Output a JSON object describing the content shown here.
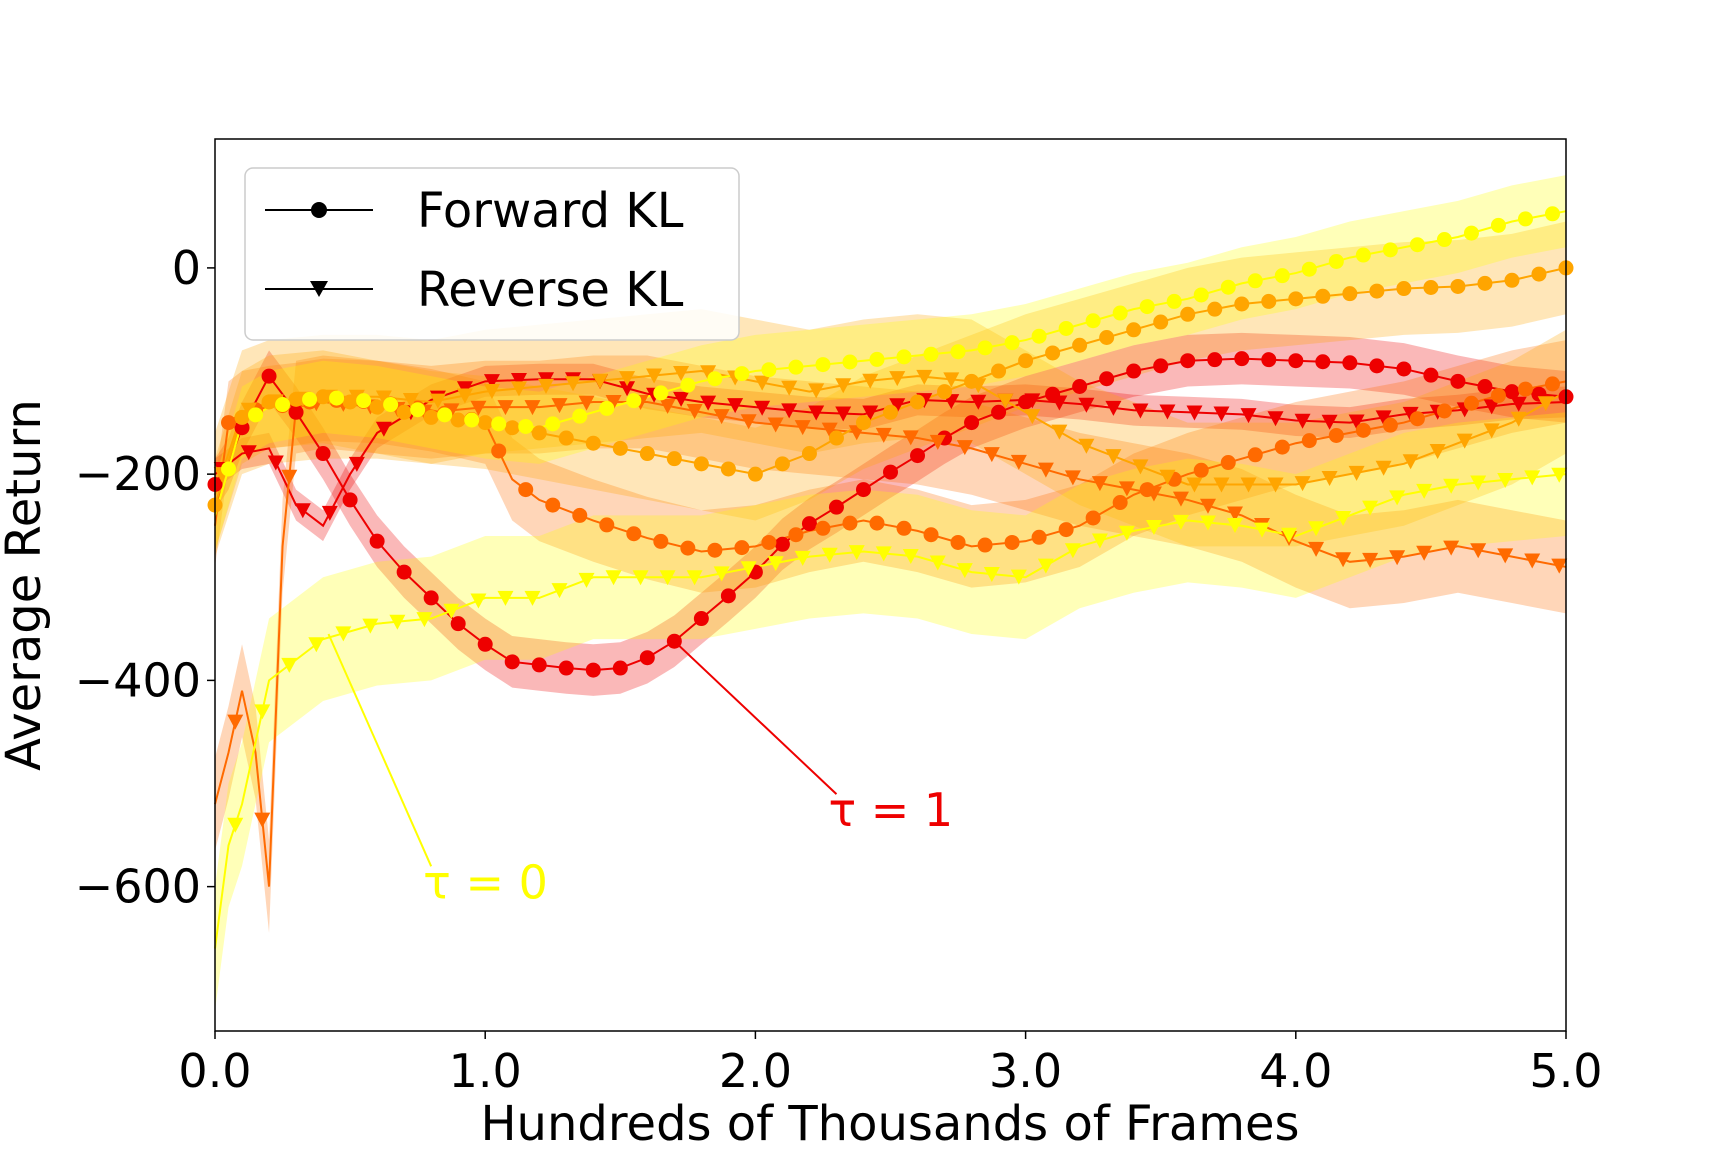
{
  "chart_data": {
    "type": "line",
    "title": "",
    "xlabel": "Hundreds of Thousands of Frames",
    "ylabel": "Average Return",
    "xlim": [
      0,
      5
    ],
    "ylim": [
      -740,
      125
    ],
    "xticks": [
      0,
      1,
      2,
      3,
      4,
      5
    ],
    "xtick_labels": [
      "0.0",
      "1.0",
      "2.0",
      "3.0",
      "4.0",
      "5.0"
    ],
    "yticks": [
      0,
      -200,
      -400,
      -600
    ],
    "ytick_labels": [
      "0",
      "−200",
      "−400",
      "−600"
    ],
    "grid": false,
    "legend": {
      "placement": "top-left",
      "entries": [
        {
          "label": "Forward KL",
          "marker": "circle"
        },
        {
          "label": "Reverse KL",
          "marker": "triangle-down"
        }
      ]
    },
    "annotations": [
      {
        "text": "τ = 1",
        "color": "#ee0000",
        "points_to": [
          1.7,
          -362
        ],
        "text_at": [
          2.3,
          -520
        ]
      },
      {
        "text": "τ = 0",
        "color": "#ffff00",
        "points_to": [
          0.42,
          -355
        ],
        "text_at": [
          0.8,
          -590
        ]
      }
    ],
    "series": [
      {
        "kl": "forward",
        "tau_color": "#ee0000",
        "marker": "circle",
        "x": [
          0,
          0.05,
          0.1,
          0.2,
          0.3,
          0.4,
          0.5,
          0.6,
          0.7,
          0.8,
          0.9,
          1.0,
          1.1,
          1.2,
          1.3,
          1.4,
          1.5,
          1.6,
          1.7,
          1.8,
          1.9,
          2.0,
          2.1,
          2.2,
          2.3,
          2.4,
          2.5,
          2.6,
          2.7,
          2.8,
          2.9,
          3.0,
          3.2,
          3.4,
          3.6,
          3.8,
          4.0,
          4.2,
          4.4,
          4.6,
          4.8,
          5.0
        ],
        "y": [
          -210,
          -190,
          -155,
          -105,
          -140,
          -180,
          -225,
          -265,
          -295,
          -320,
          -345,
          -365,
          -382,
          -385,
          -388,
          -390,
          -388,
          -378,
          -362,
          -340,
          -318,
          -295,
          -268,
          -248,
          -232,
          -215,
          -198,
          -182,
          -165,
          -150,
          -140,
          -130,
          -115,
          -100,
          -90,
          -88,
          -90,
          -92,
          -98,
          -110,
          -120,
          -125
        ],
        "band": 25
      },
      {
        "kl": "reverse",
        "tau_color": "#ee0000",
        "marker": "triangle-down",
        "x": [
          0,
          0.05,
          0.1,
          0.2,
          0.3,
          0.4,
          0.5,
          0.6,
          0.8,
          1.0,
          1.2,
          1.4,
          1.6,
          1.8,
          2.0,
          2.2,
          2.4,
          2.6,
          2.8,
          3.0,
          3.2,
          3.4,
          3.6,
          3.8,
          4.0,
          4.2,
          4.4,
          4.6,
          4.8,
          5.0
        ],
        "y": [
          -200,
          -190,
          -180,
          -175,
          -230,
          -250,
          -200,
          -160,
          -128,
          -110,
          -108,
          -108,
          -122,
          -130,
          -135,
          -140,
          -142,
          -128,
          -130,
          -128,
          -132,
          -138,
          -140,
          -142,
          -148,
          -150,
          -142,
          -138,
          -132,
          -130
        ],
        "band": 15
      },
      {
        "kl": "forward",
        "tau_color": "#ff6a00",
        "marker": "circle",
        "x": [
          0,
          0.05,
          0.1,
          0.2,
          0.3,
          0.4,
          0.6,
          0.8,
          1.0,
          1.1,
          1.2,
          1.4,
          1.6,
          1.8,
          2.0,
          2.2,
          2.4,
          2.6,
          2.8,
          3.0,
          3.2,
          3.4,
          3.6,
          3.8,
          4.0,
          4.2,
          4.4,
          4.6,
          4.8,
          5.0
        ],
        "y": [
          -250,
          -150,
          -140,
          -135,
          -132,
          -128,
          -130,
          -138,
          -150,
          -205,
          -225,
          -245,
          -262,
          -275,
          -270,
          -255,
          -245,
          -255,
          -270,
          -265,
          -250,
          -220,
          -200,
          -185,
          -170,
          -160,
          -150,
          -135,
          -120,
          -110
        ],
        "band": 40
      },
      {
        "kl": "reverse",
        "tau_color": "#ff6a00",
        "marker": "triangle-down",
        "x": [
          0,
          0.05,
          0.1,
          0.15,
          0.2,
          0.25,
          0.3,
          0.4,
          0.6,
          0.8,
          1.0,
          1.2,
          1.4,
          1.6,
          1.8,
          2.0,
          2.2,
          2.4,
          2.6,
          2.8,
          3.0,
          3.2,
          3.4,
          3.6,
          3.8,
          4.0,
          4.2,
          4.4,
          4.6,
          4.8,
          5.0
        ],
        "y": [
          -520,
          -470,
          -410,
          -470,
          -600,
          -270,
          -135,
          -130,
          -135,
          -140,
          -135,
          -135,
          -130,
          -130,
          -140,
          -150,
          -155,
          -160,
          -165,
          -175,
          -190,
          -205,
          -215,
          -225,
          -240,
          -265,
          -285,
          -280,
          -270,
          -280,
          -290
        ],
        "band": 45
      },
      {
        "kl": "forward",
        "tau_color": "#ffa500",
        "marker": "circle",
        "x": [
          0,
          0.1,
          0.2,
          0.4,
          0.6,
          0.8,
          1.0,
          1.2,
          1.4,
          1.6,
          1.8,
          2.0,
          2.2,
          2.4,
          2.6,
          2.8,
          3.0,
          3.2,
          3.4,
          3.6,
          3.8,
          4.0,
          4.2,
          4.4,
          4.6,
          4.8,
          5.0
        ],
        "y": [
          -230,
          -145,
          -130,
          -125,
          -135,
          -145,
          -150,
          -160,
          -170,
          -180,
          -190,
          -200,
          -180,
          -150,
          -130,
          -110,
          -90,
          -75,
          -60,
          -45,
          -35,
          -30,
          -25,
          -20,
          -18,
          -12,
          0
        ],
        "band": 45
      },
      {
        "kl": "reverse",
        "tau_color": "#ffa500",
        "marker": "triangle-down",
        "x": [
          0,
          0.1,
          0.2,
          0.4,
          0.6,
          0.8,
          1.0,
          1.2,
          1.4,
          1.6,
          1.8,
          2.0,
          2.2,
          2.4,
          2.6,
          2.8,
          3.0,
          3.2,
          3.4,
          3.6,
          3.8,
          4.0,
          4.2,
          4.4,
          4.6,
          4.8,
          5.0
        ],
        "y": [
          -220,
          -140,
          -130,
          -125,
          -125,
          -130,
          -120,
          -115,
          -110,
          -105,
          -100,
          -110,
          -120,
          -110,
          -105,
          -110,
          -140,
          -170,
          -190,
          -210,
          -210,
          -210,
          -200,
          -190,
          -170,
          -150,
          -120
        ],
        "band": 60
      },
      {
        "kl": "forward",
        "tau_color": "#ffff00",
        "marker": "circle",
        "x": [
          0,
          0.1,
          0.2,
          0.4,
          0.6,
          0.8,
          1.0,
          1.2,
          1.4,
          1.6,
          1.8,
          2.0,
          2.2,
          2.4,
          2.6,
          2.8,
          3.0,
          3.2,
          3.4,
          3.6,
          3.8,
          4.0,
          4.2,
          4.4,
          4.6,
          4.8,
          5.0
        ],
        "y": [
          -240,
          -150,
          -135,
          -125,
          -130,
          -140,
          -150,
          -155,
          -140,
          -125,
          -110,
          -100,
          -95,
          -90,
          -85,
          -80,
          -70,
          -55,
          -40,
          -30,
          -15,
          -5,
          10,
          20,
          30,
          45,
          55
        ],
        "band": 35
      },
      {
        "kl": "reverse",
        "tau_color": "#ffff00",
        "marker": "triangle-down",
        "x": [
          0,
          0.05,
          0.1,
          0.2,
          0.3,
          0.4,
          0.6,
          0.8,
          1.0,
          1.2,
          1.4,
          1.6,
          1.8,
          2.0,
          2.2,
          2.4,
          2.6,
          2.8,
          3.0,
          3.2,
          3.4,
          3.6,
          3.8,
          4.0,
          4.2,
          4.4,
          4.6,
          4.8,
          5.0
        ],
        "y": [
          -660,
          -560,
          -520,
          -400,
          -380,
          -360,
          -345,
          -340,
          -320,
          -320,
          -300,
          -300,
          -300,
          -290,
          -280,
          -275,
          -280,
          -295,
          -300,
          -270,
          -255,
          -245,
          -250,
          -260,
          -240,
          -220,
          -210,
          -205,
          -200
        ],
        "band": 60
      }
    ]
  }
}
